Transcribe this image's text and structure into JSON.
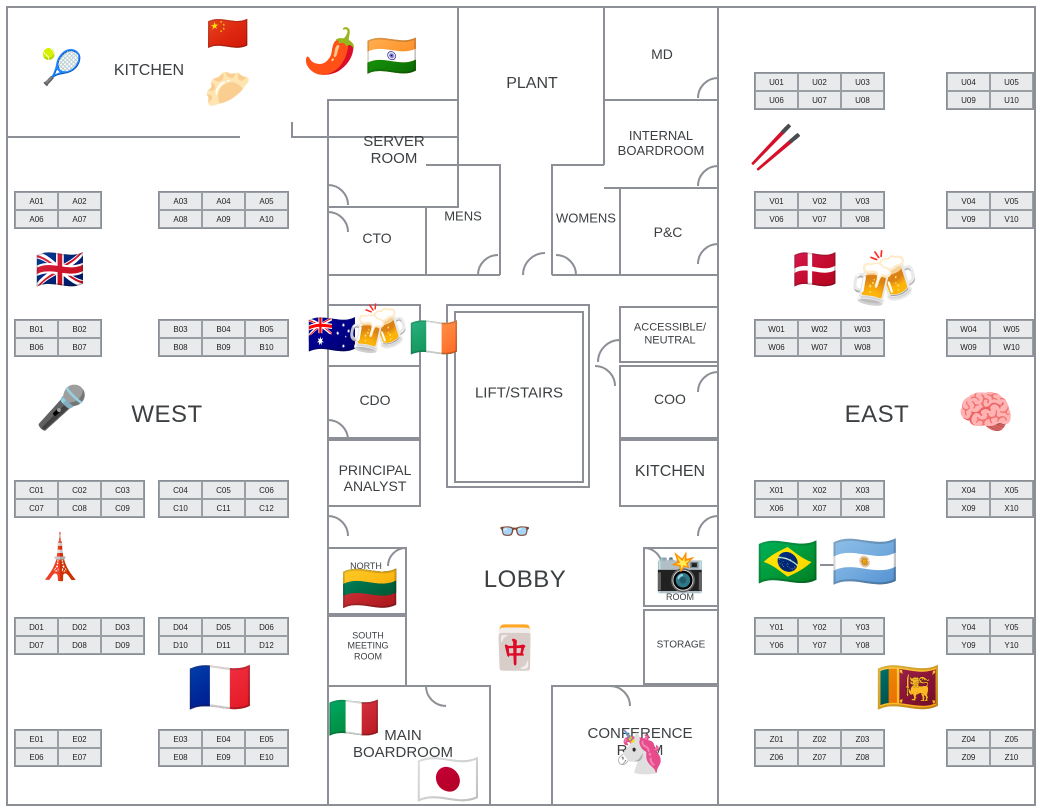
{
  "zones": {
    "west": "WEST",
    "east": "EAST",
    "lobby": "LOBBY"
  },
  "rooms": {
    "kitchen_top": "KITCHEN",
    "plant": "PLANT",
    "md": "MD",
    "server_room": [
      "SERVER",
      "ROOM"
    ],
    "internal_boardroom": [
      "INTERNAL",
      "BOARDROOM"
    ],
    "mens": "MENS",
    "womens": "WOMENS",
    "cto": "CTO",
    "p_and_c": "P&C",
    "accessible": [
      "ACCESSIBLE/",
      "NEUTRAL"
    ],
    "lift_stairs": "LIFT/STAIRS",
    "cdo": "CDO",
    "coo": "COO",
    "principal_analyst": [
      "PRINCIPAL",
      "ANALYST"
    ],
    "kitchen_mid": "KITCHEN",
    "north": "NORTH",
    "room": "ROOM",
    "south_meeting_room": [
      "SOUTH",
      "MEETING",
      "ROOM"
    ],
    "storage": "STORAGE",
    "main_boardroom": [
      "MAIN",
      "BOARDROOM"
    ],
    "conference": [
      "CONFERENCE",
      "ROOM"
    ]
  },
  "desk_blocks": [
    {
      "id": "A-left",
      "cols": 2,
      "desks": [
        "A01",
        "A02",
        "A06",
        "A07"
      ]
    },
    {
      "id": "A-right",
      "cols": 3,
      "desks": [
        "A03",
        "A04",
        "A05",
        "A08",
        "A09",
        "A10"
      ]
    },
    {
      "id": "B-left",
      "cols": 2,
      "desks": [
        "B01",
        "B02",
        "B06",
        "B07"
      ]
    },
    {
      "id": "B-right",
      "cols": 3,
      "desks": [
        "B03",
        "B04",
        "B05",
        "B08",
        "B09",
        "B10"
      ]
    },
    {
      "id": "C-left",
      "cols": 3,
      "desks": [
        "C01",
        "C02",
        "C03",
        "C07",
        "C08",
        "C09"
      ]
    },
    {
      "id": "C-right",
      "cols": 3,
      "desks": [
        "C04",
        "C05",
        "C06",
        "C10",
        "C11",
        "C12"
      ]
    },
    {
      "id": "D-left",
      "cols": 3,
      "desks": [
        "D01",
        "D02",
        "D03",
        "D07",
        "D08",
        "D09"
      ]
    },
    {
      "id": "D-right",
      "cols": 3,
      "desks": [
        "D04",
        "D05",
        "D06",
        "D10",
        "D11",
        "D12"
      ]
    },
    {
      "id": "E-left",
      "cols": 2,
      "desks": [
        "E01",
        "E02",
        "E06",
        "E07"
      ]
    },
    {
      "id": "E-right",
      "cols": 3,
      "desks": [
        "E03",
        "E04",
        "E05",
        "E08",
        "E09",
        "E10"
      ]
    },
    {
      "id": "U-left",
      "cols": 3,
      "desks": [
        "U01",
        "U02",
        "U03",
        "U06",
        "U07",
        "U08"
      ]
    },
    {
      "id": "U-right",
      "cols": 2,
      "desks": [
        "U04",
        "U05",
        "U09",
        "U10"
      ]
    },
    {
      "id": "V-left",
      "cols": 3,
      "desks": [
        "V01",
        "V02",
        "V03",
        "V06",
        "V07",
        "V08"
      ]
    },
    {
      "id": "V-right",
      "cols": 2,
      "desks": [
        "V04",
        "V05",
        "V09",
        "V10"
      ]
    },
    {
      "id": "W-left",
      "cols": 3,
      "desks": [
        "W01",
        "W02",
        "W03",
        "W06",
        "W07",
        "W08"
      ]
    },
    {
      "id": "W-right",
      "cols": 2,
      "desks": [
        "W04",
        "W05",
        "W09",
        "W10"
      ]
    },
    {
      "id": "X-left",
      "cols": 3,
      "desks": [
        "X01",
        "X02",
        "X03",
        "X06",
        "X07",
        "X08"
      ]
    },
    {
      "id": "X-right",
      "cols": 2,
      "desks": [
        "X04",
        "X05",
        "X09",
        "X10"
      ]
    },
    {
      "id": "Y-left",
      "cols": 3,
      "desks": [
        "Y01",
        "Y02",
        "Y03",
        "Y06",
        "Y07",
        "Y08"
      ]
    },
    {
      "id": "Y-right",
      "cols": 2,
      "desks": [
        "Y04",
        "Y05",
        "Y09",
        "Y10"
      ]
    },
    {
      "id": "Z-left",
      "cols": 3,
      "desks": [
        "Z01",
        "Z02",
        "Z03",
        "Z06",
        "Z07",
        "Z08"
      ]
    },
    {
      "id": "Z-right",
      "cols": 2,
      "desks": [
        "Z04",
        "Z05",
        "Z09",
        "Z10"
      ]
    }
  ],
  "icons": [
    {
      "name": "tennis-racket-icon",
      "glyph": "🎾"
    },
    {
      "name": "china-flag-icon",
      "glyph": "🇨🇳"
    },
    {
      "name": "dumpling-icon",
      "glyph": "🥟"
    },
    {
      "name": "chili-pepper-icon",
      "glyph": "🌶️"
    },
    {
      "name": "india-flag-icon",
      "glyph": "🇮🇳"
    },
    {
      "name": "chopsticks-icon",
      "glyph": "🥢"
    },
    {
      "name": "uk-flag-icon",
      "glyph": "🇬🇧"
    },
    {
      "name": "denmark-flag-icon",
      "glyph": "🇩🇰"
    },
    {
      "name": "beer-mugs-icon-east",
      "glyph": "🍻"
    },
    {
      "name": "australia-flag-icon",
      "glyph": "🇦🇺"
    },
    {
      "name": "beer-mugs-icon-center",
      "glyph": "🍻"
    },
    {
      "name": "ireland-flag-icon",
      "glyph": "🇮🇪"
    },
    {
      "name": "microphone-icon",
      "glyph": "🎤"
    },
    {
      "name": "brain-icon",
      "glyph": "🧠"
    },
    {
      "name": "tokyo-tower-icon",
      "glyph": "🗼"
    },
    {
      "name": "glasses-icon",
      "glyph": "👓"
    },
    {
      "name": "brazil-flag-icon",
      "glyph": "🇧🇷"
    },
    {
      "name": "argentina-flag-icon",
      "glyph": "🇦🇷"
    },
    {
      "name": "lithuania-flag-icon",
      "glyph": "🇱🇹"
    },
    {
      "name": "camera-flash-icon",
      "glyph": "📸"
    },
    {
      "name": "mahjong-tile-icon",
      "glyph": "🀄"
    },
    {
      "name": "france-flag-icon",
      "glyph": "🇫🇷"
    },
    {
      "name": "sri-lanka-flag-icon",
      "glyph": "🇱🇰"
    },
    {
      "name": "italy-flag-icon",
      "glyph": "🇮🇹"
    },
    {
      "name": "unicorn-icon",
      "glyph": "🦄"
    },
    {
      "name": "japan-flag-icon",
      "glyph": "🇯🇵"
    }
  ]
}
